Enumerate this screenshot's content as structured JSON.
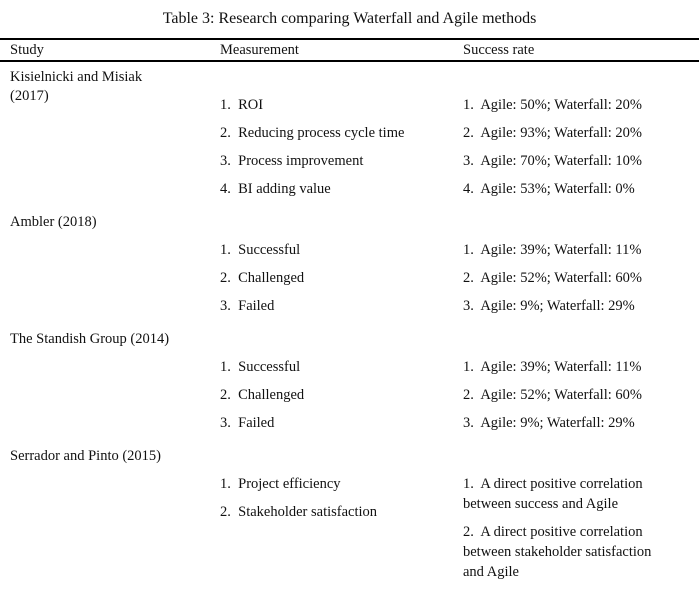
{
  "title": "Table 3: Research comparing Waterfall and Agile methods",
  "columns": {
    "study": "Study",
    "measurement": "Measurement",
    "success_rate": "Success rate"
  },
  "rows": [
    {
      "study": "Kisielnicki and Misiak\n(2017)",
      "measurements": [
        "1.  ROI",
        "2.  Reducing process cycle time",
        "3.  Process improvement",
        "4.  BI adding value"
      ],
      "success_rates": [
        "1.  Agile: 50%; Waterfall: 20%",
        "2.  Agile: 93%; Waterfall: 20%",
        "3.  Agile: 70%; Waterfall: 10%",
        "4.  Agile: 53%; Waterfall: 0%"
      ]
    },
    {
      "study": "Ambler (2018)",
      "measurements": [
        "1.  Successful",
        "2.  Challenged",
        "3.  Failed"
      ],
      "success_rates": [
        "1.  Agile: 39%; Waterfall: 11%",
        "2.  Agile: 52%; Waterfall: 60%",
        "3.  Agile: 9%; Waterfall: 29%"
      ]
    },
    {
      "study": "The Standish Group (2014)",
      "measurements": [
        "1.  Successful",
        "2.  Challenged",
        "3.  Failed"
      ],
      "success_rates": [
        "1.  Agile: 39%; Waterfall: 11%",
        "2.  Agile: 52%; Waterfall: 60%",
        "3.  Agile: 9%; Waterfall: 29%"
      ]
    },
    {
      "study": "Serrador and Pinto (2015)",
      "measurements": [
        "1.  Project efficiency",
        "2.  Stakeholder satisfaction"
      ],
      "success_rates": [
        "1.  A direct positive correlation\nbetween success and Agile",
        "2.  A direct positive correlation\nbetween stakeholder satisfaction\nand Agile"
      ]
    }
  ]
}
